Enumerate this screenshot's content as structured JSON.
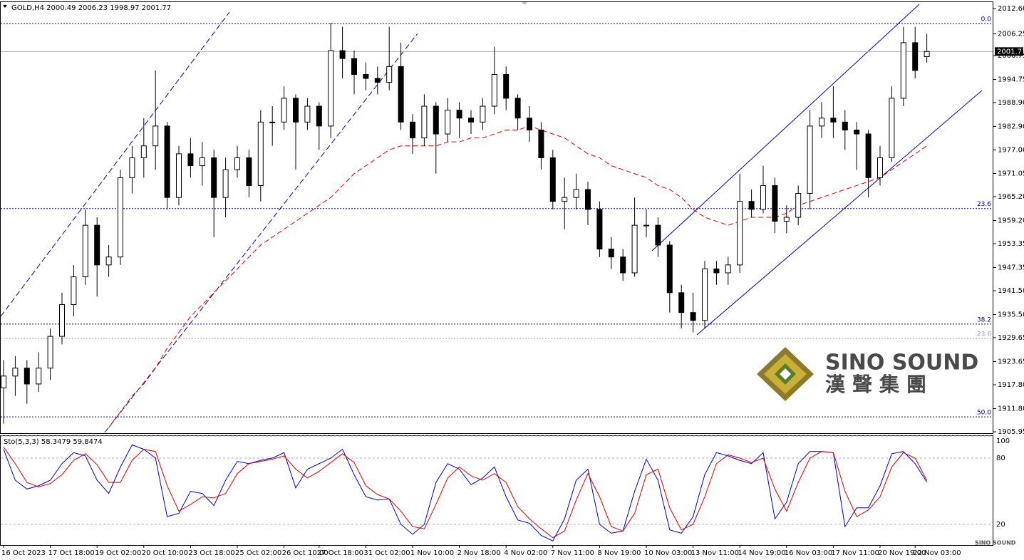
{
  "chart_data": [
    {
      "type": "candlestick",
      "title": "GOLD,H4",
      "categories": [
        "16 Oct 2023",
        null,
        null,
        null,
        "17 Oct 18:00",
        null,
        null,
        null,
        "19 Oct 02:00",
        null,
        null,
        null,
        "20 Oct 10:00",
        null,
        null,
        null,
        "23 Oct 18:00",
        null,
        null,
        null,
        "25 Oct 02:00",
        null,
        null,
        null,
        "26 Oct 10:00",
        null,
        null,
        "27 Oct 18:00",
        null,
        null,
        null,
        "31 Oct 02:00",
        null,
        null,
        null,
        "1 Nov 10:00",
        null,
        null,
        null,
        "2 Nov 18:00",
        null,
        null,
        null,
        "4 Nov 02:00",
        null,
        null,
        null,
        "7 Nov 11:00",
        null,
        null,
        null,
        "8 Nov 19:00",
        null,
        null,
        null,
        "10 Nov 03:00",
        null,
        null,
        null,
        "13 Nov 11:00",
        null,
        null,
        null,
        "14 Nov 19:00",
        null,
        null,
        null,
        "16 Nov 03:00",
        null,
        null,
        null,
        "17 Nov 11:00",
        null,
        null,
        null,
        "20 Nov 19:00",
        null,
        null,
        "22 Nov 03:00",
        null
      ],
      "ohlc": [
        [
          1917,
          1924,
          1908,
          1920
        ],
        [
          1920,
          1925,
          1915,
          1922
        ],
        [
          1922,
          1924,
          1913,
          1918
        ],
        [
          1918,
          1926,
          1916,
          1922
        ],
        [
          1922,
          1932,
          1919,
          1930
        ],
        [
          1930,
          1941,
          1928,
          1938
        ],
        [
          1938,
          1948,
          1935,
          1945
        ],
        [
          1945,
          1962,
          1943,
          1958
        ],
        [
          1958,
          1960,
          1940,
          1948
        ],
        [
          1948,
          1953,
          1945,
          1950
        ],
        [
          1950,
          1972,
          1948,
          1970
        ],
        [
          1970,
          1978,
          1966,
          1975
        ],
        [
          1975,
          1985,
          1970,
          1978
        ],
        [
          1978,
          1997,
          1972,
          1983
        ],
        [
          1983,
          1984,
          1962,
          1965
        ],
        [
          1965,
          1978,
          1963,
          1976
        ],
        [
          1976,
          1980,
          1970,
          1973
        ],
        [
          1973,
          1979,
          1968,
          1975
        ],
        [
          1975,
          1977,
          1955,
          1965
        ],
        [
          1965,
          1975,
          1960,
          1972
        ],
        [
          1972,
          1978,
          1970,
          1975
        ],
        [
          1975,
          1977,
          1965,
          1968
        ],
        [
          1968,
          1987,
          1964,
          1984
        ],
        [
          1984,
          1988,
          1978,
          1984
        ],
        [
          1984,
          1993,
          1982,
          1990
        ],
        [
          1990,
          1991,
          1972,
          1984
        ],
        [
          1984,
          1990,
          1982,
          1988
        ],
        [
          1988,
          1989,
          1977,
          1983
        ],
        [
          1983,
          2009,
          1980,
          2002
        ],
        [
          2002,
          2008,
          1995,
          2000
        ],
        [
          2000,
          2002,
          1991,
          1996
        ],
        [
          1996,
          1999,
          1992,
          1995
        ],
        [
          1995,
          1998,
          1991,
          1994
        ],
        [
          1994,
          2008,
          1992,
          1998
        ],
        [
          1998,
          2004,
          1982,
          1984
        ],
        [
          1984,
          1986,
          1976,
          1980
        ],
        [
          1980,
          1991,
          1978,
          1988
        ],
        [
          1988,
          1989,
          1971,
          1981
        ],
        [
          1981,
          1990,
          1979,
          1987
        ],
        [
          1987,
          1989,
          1980,
          1985
        ],
        [
          1985,
          1987,
          1981,
          1984
        ],
        [
          1984,
          1990,
          1982,
          1988
        ],
        [
          1988,
          2003,
          1986,
          1996
        ],
        [
          1996,
          1998,
          1987,
          1990
        ],
        [
          1990,
          1991,
          1982,
          1985
        ],
        [
          1985,
          1988,
          1979,
          1982
        ],
        [
          1982,
          1984,
          1972,
          1975
        ],
        [
          1975,
          1977,
          1962,
          1964
        ],
        [
          1964,
          1970,
          1957,
          1965
        ],
        [
          1965,
          1971,
          1962,
          1967
        ],
        [
          1967,
          1969,
          1958,
          1962
        ],
        [
          1962,
          1964,
          1950,
          1952
        ],
        [
          1952,
          1955,
          1947,
          1950
        ],
        [
          1950,
          1952,
          1944,
          1946
        ],
        [
          1946,
          1965,
          1945,
          1958
        ],
        [
          1958,
          1962,
          1955,
          1958
        ],
        [
          1958,
          1960,
          1950,
          1953
        ],
        [
          1953,
          1954,
          1936,
          1941
        ],
        [
          1941,
          1943,
          1932,
          1936
        ],
        [
          1936,
          1941,
          1931,
          1934
        ],
        [
          1934,
          1949,
          1932,
          1947
        ],
        [
          1947,
          1949,
          1943,
          1946
        ],
        [
          1946,
          1950,
          1943,
          1948
        ],
        [
          1948,
          1971,
          1946,
          1964
        ],
        [
          1964,
          1967,
          1960,
          1962
        ],
        [
          1962,
          1973,
          1961,
          1968
        ],
        [
          1968,
          1970,
          1956,
          1959
        ],
        [
          1959,
          1963,
          1956,
          1960
        ],
        [
          1960,
          1968,
          1958,
          1966
        ],
        [
          1966,
          1987,
          1962,
          1983
        ],
        [
          1983,
          1989,
          1980,
          1985
        ],
        [
          1985,
          1993,
          1980,
          1984
        ],
        [
          1984,
          1987,
          1977,
          1982
        ],
        [
          1982,
          1984,
          1972,
          1981
        ],
        [
          1981,
          1982,
          1965,
          1970
        ],
        [
          1970,
          1978,
          1968,
          1975
        ],
        [
          1975,
          1993,
          1974,
          1990
        ],
        [
          1990,
          2008,
          1988,
          2004
        ],
        [
          2004,
          2008,
          1995,
          1997
        ],
        [
          2000.49,
          2006.23,
          1998.97,
          2001.77
        ]
      ],
      "up_color": "#ffffff",
      "down_color": "#000000",
      "ma": {
        "color": "#e00000",
        "values": [
          null,
          null,
          null,
          null,
          null,
          null,
          null,
          null,
          null,
          1907,
          1911,
          1915,
          1918,
          1922,
          1927,
          1931,
          1935,
          1938,
          1941,
          1944,
          1947,
          1950,
          1953,
          1955,
          1957,
          1959,
          1961,
          1963,
          1965,
          1968,
          1971,
          1973,
          1975,
          1977,
          1978,
          1978,
          1978,
          1978,
          1979,
          1979,
          1980,
          1980,
          1981,
          1982,
          1982,
          1983,
          1982,
          1981,
          1980,
          1978,
          1976,
          1975,
          1973,
          1972,
          1971,
          1970,
          1968,
          1967,
          1965,
          1962,
          1960,
          1959,
          1958,
          1959,
          1960,
          1960,
          1960,
          1961,
          1963,
          1964,
          1965,
          1966,
          1967,
          1968,
          1969,
          1970,
          1972,
          1974,
          1976,
          1978
        ]
      },
      "levels": [
        {
          "label": "0.0",
          "value": 2008.8,
          "color": "#0000aa"
        },
        {
          "label": "23.6",
          "value": 1962.2,
          "color": "#0000aa"
        },
        {
          "label": "38.2",
          "value": 1933.1,
          "color": "#0000aa"
        },
        {
          "label": "23.6",
          "value": 1929.5,
          "color": "#a0a0a0"
        },
        {
          "label": "50.0",
          "value": 1909.7,
          "color": "#0000aa"
        }
      ],
      "ylim": [
        1905.6,
        2013.86
      ],
      "yticks": [
        {
          "value": 2012.6,
          "label": "2012.60"
        },
        2006.25,
        2000.75,
        1994.75,
        {
          "value": 1988.9,
          "label": "1988.90"
        },
        {
          "value": 1982.9,
          "label": "1982.90"
        },
        {
          "value": 1977,
          "label": "1977.00"
        },
        1971.05,
        {
          "value": 1965.2,
          "label": "1965.20"
        },
        {
          "value": 1959.2,
          "label": "1959.20"
        },
        1953.35,
        1947.35,
        {
          "value": 1941.5,
          "label": "1941.50"
        },
        {
          "value": 1935.5,
          "label": "1935.50"
        },
        1929.65,
        1923.65,
        {
          "value": 1917.8,
          "label": "1917.80"
        },
        {
          "value": 1911.8,
          "label": "1911.80"
        },
        1905.95
      ]
    },
    {
      "type": "line",
      "title": "Sto(5,3,3)",
      "series": [
        {
          "color": "#0000cd",
          "values": [
            88,
            60,
            52,
            55,
            60,
            75,
            85,
            82,
            60,
            48,
            72,
            92,
            88,
            80,
            27,
            30,
            50,
            48,
            37,
            60,
            77,
            75,
            78,
            80,
            85,
            53,
            70,
            75,
            80,
            88,
            65,
            45,
            42,
            43,
            20,
            11,
            20,
            58,
            75,
            70,
            56,
            62,
            72,
            45,
            24,
            21,
            10,
            5,
            25,
            60,
            70,
            20,
            12,
            14,
            50,
            79,
            60,
            15,
            12,
            27,
            65,
            85,
            82,
            78,
            75,
            85,
            25,
            40,
            75,
            86,
            86,
            85,
            18,
            35,
            35,
            55,
            84,
            86,
            75,
            58.3479
          ]
        },
        {
          "color": "#e00000",
          "values": [
            90,
            75,
            58,
            54,
            57,
            65,
            78,
            84,
            74,
            58,
            58,
            78,
            88,
            86,
            55,
            32,
            38,
            45,
            44,
            48,
            66,
            75,
            77,
            79,
            82,
            70,
            62,
            68,
            76,
            84,
            76,
            55,
            47,
            43,
            32,
            18,
            16,
            38,
            62,
            72,
            64,
            60,
            66,
            58,
            36,
            25,
            16,
            8,
            14,
            42,
            66,
            45,
            18,
            14,
            30,
            65,
            70,
            35,
            15,
            20,
            45,
            75,
            83,
            80,
            76,
            80,
            52,
            32,
            58,
            80,
            86,
            85,
            50,
            27,
            33,
            45,
            72,
            85,
            80,
            59.8474
          ]
        }
      ],
      "ylim": [
        0,
        100
      ],
      "yticks": [
        20,
        80,
        100
      ]
    }
  ],
  "watermark": {
    "brand": "SINO SOUND",
    "chinese": "漢聲集團"
  }
}
